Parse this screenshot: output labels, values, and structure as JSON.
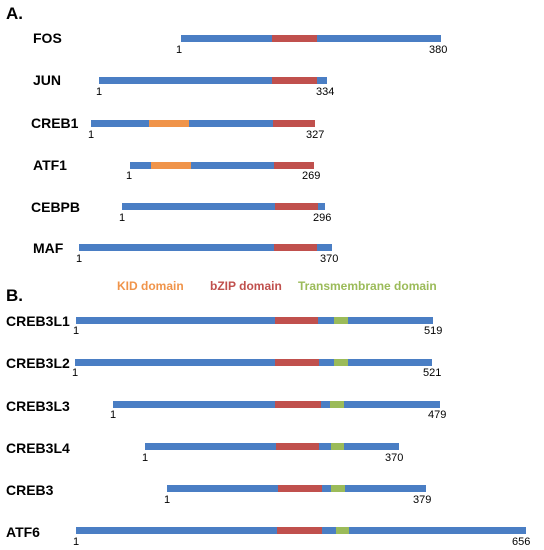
{
  "section_a": "A.",
  "section_b": "B.",
  "colors": {
    "backbone": "#4a7ec4",
    "kid": "#f0944a",
    "bzip": "#c0504d",
    "transmembrane": "#9bbb59"
  },
  "legend": {
    "kid": "KID domain",
    "bzip": "bZIP domain",
    "transmembrane": "Transmembrane domain"
  },
  "proteins": [
    {
      "name": "FOS",
      "start": "1",
      "end": "380"
    },
    {
      "name": "JUN",
      "start": "1",
      "end": "334"
    },
    {
      "name": "CREB1",
      "start": "1",
      "end": "327"
    },
    {
      "name": "ATF1",
      "start": "1",
      "end": "269"
    },
    {
      "name": "CEBPB",
      "start": "1",
      "end": "296"
    },
    {
      "name": "MAF",
      "start": "1",
      "end": "370"
    },
    {
      "name": "CREB3L1",
      "start": "1",
      "end": "519"
    },
    {
      "name": "CREB3L2",
      "start": "1",
      "end": "521"
    },
    {
      "name": "CREB3L3",
      "start": "1",
      "end": "479"
    },
    {
      "name": "CREB3L4",
      "start": "1",
      "end": "370"
    },
    {
      "name": "CREB3",
      "start": "1",
      "end": "379"
    },
    {
      "name": "ATF6",
      "start": "1",
      "end": "656"
    }
  ]
}
